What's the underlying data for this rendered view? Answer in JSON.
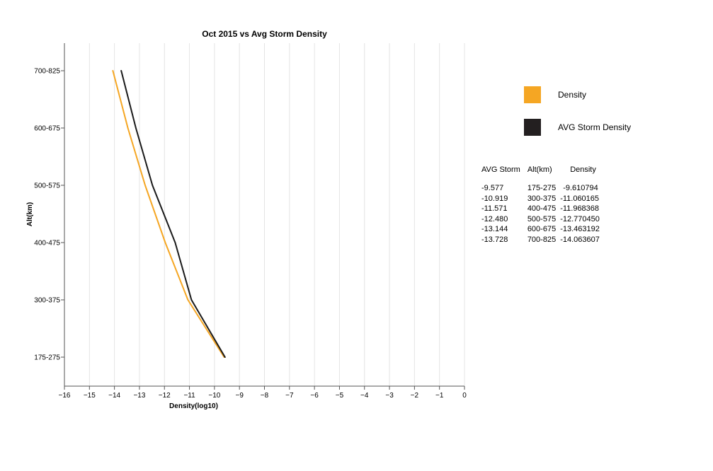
{
  "chart_data": {
    "type": "line",
    "title": "Oct 2015 vs Avg Storm Density",
    "xlabel": "Density(log10)",
    "ylabel": "Alt(km)",
    "xlim": [
      -16,
      0
    ],
    "xticks": [
      "−16",
      "−15",
      "−14",
      "−13",
      "−12",
      "−11",
      "−10",
      "−9",
      "−8",
      "−7",
      "−6",
      "−5",
      "−4",
      "−3",
      "−2",
      "−1",
      "0"
    ],
    "categories": [
      "175-275",
      "300-375",
      "400-475",
      "500-575",
      "600-675",
      "700-825"
    ],
    "grid": true,
    "series": [
      {
        "name": "Density",
        "color": "#f5a623",
        "values": [
          -9.610794,
          -11.060165,
          -11.968368,
          -12.77045,
          -13.463192,
          -14.063607
        ]
      },
      {
        "name": "AVG Storm Density",
        "color": "#1a1a1a",
        "values": [
          -9.577,
          -10.919,
          -11.571,
          -12.48,
          -13.144,
          -13.728
        ]
      }
    ]
  },
  "legend": [
    {
      "label": "Density",
      "color": "#f5a623"
    },
    {
      "label": "AVG Storm Density",
      "color": "#231f20"
    }
  ],
  "table": {
    "headers": [
      "AVG Storm",
      "Alt(km)",
      "Density"
    ],
    "rows": [
      [
        "-9.577",
        "175-275",
        "-9.610794"
      ],
      [
        "-10.919",
        "300-375",
        "-11.060165"
      ],
      [
        "-11.571",
        "400-475",
        "-11.968368"
      ],
      [
        "-12.480",
        "500-575",
        "-12.770450"
      ],
      [
        "-13.144",
        "600-675",
        "-13.463192"
      ],
      [
        "-13.728",
        "700-825",
        "-14.063607"
      ]
    ]
  }
}
